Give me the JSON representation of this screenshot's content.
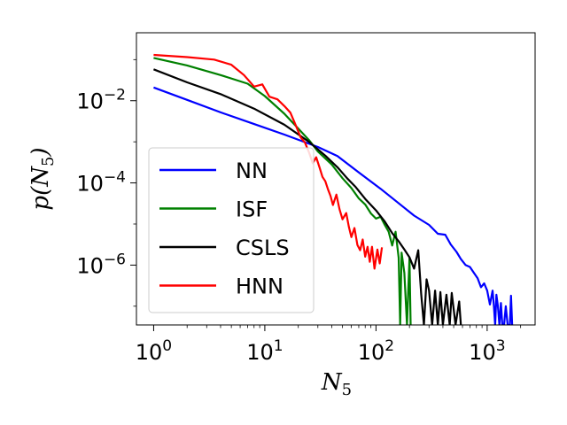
{
  "chart_data": {
    "type": "line",
    "title": "",
    "xlabel": "N_5",
    "ylabel": "p(N_5)",
    "xscale": "log",
    "yscale": "log",
    "xlim": [
      0.7,
      2700
    ],
    "ylim": [
      3.5e-08,
      0.45
    ],
    "grid": false,
    "legend_position": "center-left",
    "x_ticks": [
      {
        "value": 1,
        "base": "10",
        "exp": "0"
      },
      {
        "value": 10,
        "base": "10",
        "exp": "1"
      },
      {
        "value": 100,
        "base": "10",
        "exp": "2"
      },
      {
        "value": 1000,
        "base": "10",
        "exp": "3"
      }
    ],
    "y_ticks": [
      {
        "value": 0.01,
        "base": "10",
        "exp": "−2"
      },
      {
        "value": 0.0001,
        "base": "10",
        "exp": "−4"
      },
      {
        "value": 1e-06,
        "base": "10",
        "exp": "−6"
      }
    ],
    "series": [
      {
        "name": "NN",
        "color": "#0000ff",
        "points": [
          [
            1,
            0.021
          ],
          [
            2,
            0.0105
          ],
          [
            4,
            0.0052
          ],
          [
            8,
            0.0027
          ],
          [
            15,
            0.0015
          ],
          [
            30,
            0.00075
          ],
          [
            45,
            0.00045
          ],
          [
            70,
            0.00018
          ],
          [
            110,
            7.2e-05
          ],
          [
            170,
            2.8e-05
          ],
          [
            220,
            1.6e-05
          ],
          [
            300,
            9.5e-06
          ],
          [
            360,
            5.8e-06
          ],
          [
            420,
            5.5e-06
          ],
          [
            470,
            3.2e-06
          ],
          [
            530,
            2.1e-06
          ],
          [
            580,
            1.4e-06
          ],
          [
            640,
            1e-06
          ],
          [
            700,
            9e-07
          ],
          [
            760,
            6.5e-07
          ],
          [
            820,
            4.8e-07
          ],
          [
            880,
            2.9e-07
          ],
          [
            940,
            3.6e-07
          ],
          [
            1000,
            2.4e-07
          ],
          [
            1060,
            1.1e-07
          ],
          [
            1120,
            2.4e-07
          ],
          [
            1150,
            1e-07
          ],
          [
            1180,
            3.5e-08
          ],
          [
            1210,
            1.9e-07
          ],
          [
            1250,
            1e-07
          ],
          [
            1290,
            3.5e-08
          ],
          [
            1330,
            1.2e-07
          ],
          [
            1370,
            3.5e-08
          ],
          [
            1420,
            3.5e-08
          ],
          [
            1470,
            1e-07
          ],
          [
            1530,
            3.5e-08
          ],
          [
            1600,
            3.5e-08
          ],
          [
            1640,
            1.8e-07
          ],
          [
            1680,
            3.5e-08
          ]
        ]
      },
      {
        "name": "ISF",
        "color": "#008000",
        "points": [
          [
            1,
            0.11
          ],
          [
            2,
            0.072
          ],
          [
            4,
            0.042
          ],
          [
            7,
            0.026
          ],
          [
            10,
            0.013
          ],
          [
            15,
            0.0048
          ],
          [
            20,
            0.0021
          ],
          [
            25,
            0.0011
          ],
          [
            30,
            0.00058
          ],
          [
            40,
            0.00028
          ],
          [
            50,
            0.00013
          ],
          [
            60,
            7.5e-05
          ],
          [
            70,
            4.2e-05
          ],
          [
            80,
            3e-05
          ],
          [
            90,
            1.8e-05
          ],
          [
            100,
            1.35e-05
          ],
          [
            110,
            1.5e-05
          ],
          [
            120,
            9.5e-06
          ],
          [
            130,
            6.5e-06
          ],
          [
            140,
            3e-06
          ],
          [
            150,
            6.5e-06
          ],
          [
            160,
            1.5e-06
          ],
          [
            165,
            3.5e-08
          ],
          [
            170,
            2e-06
          ],
          [
            180,
            6.5e-07
          ],
          [
            190,
            3.5e-08
          ],
          [
            200,
            1.5e-06
          ],
          [
            205,
            3.5e-08
          ]
        ]
      },
      {
        "name": "CSLS",
        "color": "#000000",
        "points": [
          [
            1,
            0.058
          ],
          [
            2,
            0.028
          ],
          [
            4,
            0.0145
          ],
          [
            8,
            0.0064
          ],
          [
            15,
            0.0026
          ],
          [
            25,
            0.001
          ],
          [
            35,
            0.00046
          ],
          [
            45,
            0.00024
          ],
          [
            55,
            0.00013
          ],
          [
            65,
            8.2e-05
          ],
          [
            80,
            4.1e-05
          ],
          [
            100,
            2.15e-05
          ],
          [
            120,
            1.15e-05
          ],
          [
            140,
            6e-06
          ],
          [
            160,
            3.8e-06
          ],
          [
            180,
            2.4e-06
          ],
          [
            200,
            1.55e-06
          ],
          [
            220,
            8.2e-07
          ],
          [
            240,
            2.3e-06
          ],
          [
            255,
            2e-07
          ],
          [
            270,
            3.5e-08
          ],
          [
            285,
            4.5e-07
          ],
          [
            300,
            2.4e-07
          ],
          [
            320,
            3.5e-08
          ],
          [
            340,
            2.4e-07
          ],
          [
            360,
            3.5e-08
          ],
          [
            380,
            2.2e-07
          ],
          [
            400,
            3.5e-08
          ],
          [
            430,
            1.9e-07
          ],
          [
            460,
            3.5e-08
          ],
          [
            480,
            2.1e-07
          ],
          [
            520,
            3.5e-08
          ],
          [
            560,
            1.3e-07
          ],
          [
            580,
            3.5e-08
          ]
        ]
      },
      {
        "name": "HNN",
        "color": "#ff0000",
        "points": [
          [
            1,
            0.13
          ],
          [
            2,
            0.115
          ],
          [
            3.5,
            0.1
          ],
          [
            5,
            0.075
          ],
          [
            6.5,
            0.042
          ],
          [
            8,
            0.022
          ],
          [
            9.5,
            0.025
          ],
          [
            11,
            0.0125
          ],
          [
            13,
            0.0108
          ],
          [
            15,
            0.0074
          ],
          [
            17,
            0.0051
          ],
          [
            19,
            0.0025
          ],
          [
            21,
            0.0013
          ],
          [
            23,
            0.00095
          ],
          [
            25,
            0.00055
          ],
          [
            27,
            0.0003
          ],
          [
            29,
            0.00042
          ],
          [
            31,
            0.00024
          ],
          [
            33,
            0.00014
          ],
          [
            35,
            0.00011
          ],
          [
            37,
            7e-05
          ],
          [
            39,
            4.8e-05
          ],
          [
            41,
            2.9e-05
          ],
          [
            44,
            5.2e-05
          ],
          [
            47,
            2.3e-05
          ],
          [
            50,
            1.3e-05
          ],
          [
            54,
            1.85e-05
          ],
          [
            57,
            8.5e-06
          ],
          [
            60,
            4.8e-06
          ],
          [
            64,
            8e-06
          ],
          [
            68,
            3.1e-06
          ],
          [
            72,
            2.3e-06
          ],
          [
            76,
            4.2e-06
          ],
          [
            80,
            1.6e-06
          ],
          [
            84,
            2.8e-06
          ],
          [
            88,
            1.2e-06
          ],
          [
            92,
            2.8e-06
          ],
          [
            97,
            8.2e-07
          ],
          [
            103,
            2.4e-06
          ],
          [
            108,
            1.1e-06
          ],
          [
            113,
            2.7e-06
          ]
        ]
      }
    ]
  }
}
